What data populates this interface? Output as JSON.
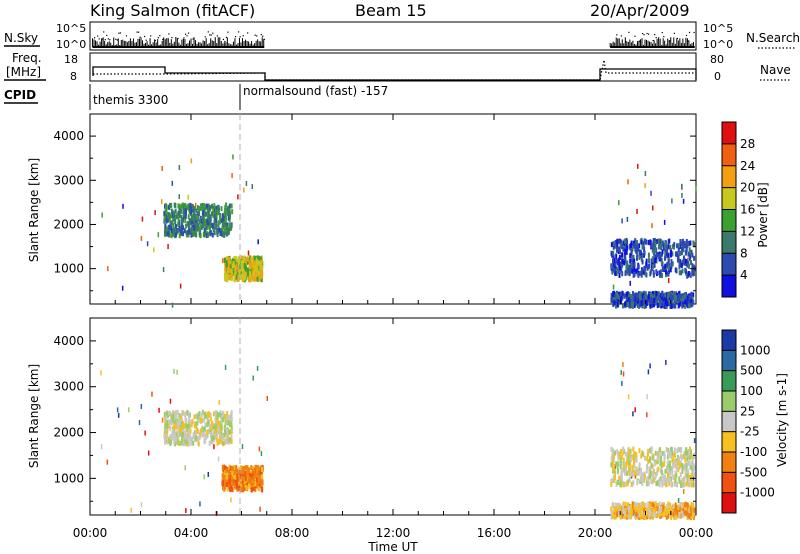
{
  "header": {
    "station": "King Salmon (fitACF)",
    "beam": "Beam 15",
    "date": "20/Apr/2009"
  },
  "strip_labels": {
    "nsky": "N.Sky",
    "freq_top": "Freq.",
    "freq_unit": "[MHz]",
    "cpid": "CPID",
    "nsearch": "N.Search",
    "nave": "Nave"
  },
  "strip_ticks": {
    "nsky_left": [
      "10^5",
      "10^0"
    ],
    "nsearch_right": [
      "10^5",
      "10^0"
    ],
    "freq_left": [
      "18",
      "8"
    ],
    "nave_right": [
      "80",
      "0"
    ]
  },
  "cpid_segments": [
    {
      "label": "themis 3300",
      "start_h": 0.0,
      "end_h": 6.0
    },
    {
      "label": "normalsound (fast) -157",
      "start_h": 6.0,
      "end_h": 24.0
    }
  ],
  "chart_data": [
    {
      "type": "heatmap",
      "name": "power",
      "ylabel": "Slant Range [km]",
      "xlabel": "",
      "xlim": [
        0,
        24
      ],
      "ylim": [
        200,
        4500
      ],
      "yticks": [
        1000,
        2000,
        3000,
        4000
      ],
      "colorbar": {
        "label": "Power [dB]",
        "ticks": [
          "4",
          "8",
          "12",
          "16",
          "20",
          "24",
          "28"
        ],
        "colors": [
          "#1010e0",
          "#2c4ab0",
          "#3a7a6a",
          "#3aa030",
          "#c8c820",
          "#f0a010",
          "#f06010",
          "#e01010"
        ]
      },
      "regions": [
        {
          "t0": 2.9,
          "t1": 5.6,
          "r0": 1800,
          "r1": 2500,
          "level": 2
        },
        {
          "t0": 5.3,
          "t1": 6.8,
          "r0": 800,
          "r1": 1300,
          "level": 4
        },
        {
          "t0": 20.6,
          "t1": 23.9,
          "r0": 900,
          "r1": 1700,
          "level": 1
        },
        {
          "t0": 20.6,
          "t1": 23.9,
          "r0": 200,
          "r1": 500,
          "level": 1
        }
      ]
    },
    {
      "type": "heatmap",
      "name": "velocity",
      "ylabel": "Slant Range [km]",
      "xlabel": "Time UT",
      "xlim": [
        0,
        24
      ],
      "ylim": [
        200,
        4500
      ],
      "yticks": [
        1000,
        2000,
        3000,
        4000
      ],
      "xticks": [
        "00:00",
        "04:00",
        "08:00",
        "12:00",
        "16:00",
        "20:00",
        "00:00"
      ],
      "colorbar": {
        "label": "Velocity [m s-1]",
        "ticks": [
          "1000",
          "500",
          "100",
          "25",
          "-25",
          "-100",
          "-500",
          "-1000"
        ],
        "colors": [
          "#1a3aa8",
          "#2a6aa0",
          "#3a9a5a",
          "#9acd6a",
          "#c8c8c8",
          "#f5c020",
          "#f08010",
          "#f05010",
          "#e01010"
        ]
      },
      "regions": [
        {
          "t0": 2.9,
          "t1": 5.6,
          "r0": 1800,
          "r1": 2500,
          "level": 4
        },
        {
          "t0": 5.2,
          "t1": 6.8,
          "r0": 800,
          "r1": 1300,
          "level": 6
        },
        {
          "t0": 20.6,
          "t1": 23.9,
          "r0": 900,
          "r1": 1700,
          "level": 4
        },
        {
          "t0": 20.6,
          "t1": 23.9,
          "r0": 200,
          "r1": 500,
          "level": 5
        }
      ]
    }
  ]
}
